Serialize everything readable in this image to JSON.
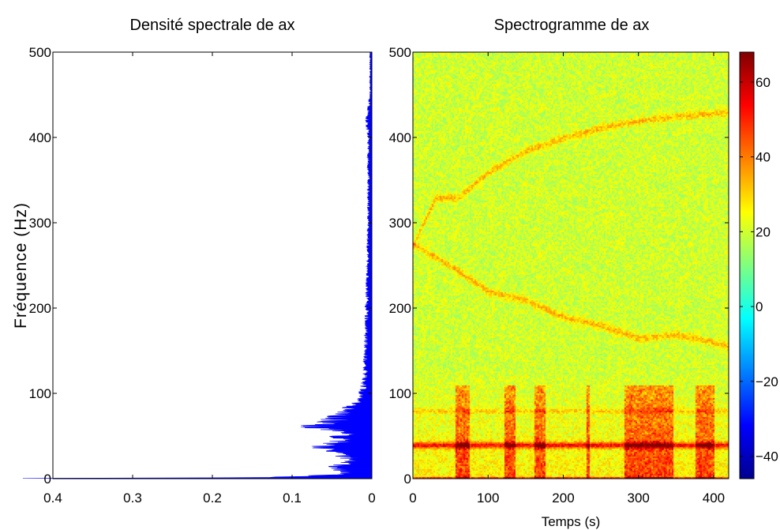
{
  "chart_data": [
    {
      "type": "area",
      "title": "Densité spectrale de ax",
      "ylabel": "Fréquence (Hz)",
      "xlabel": "",
      "xlim": [
        0.4,
        0
      ],
      "ylim": [
        0,
        500
      ],
      "xticks": [
        "0.4",
        "0.3",
        "0.2",
        "0.1",
        "0"
      ],
      "yticks": [
        "0",
        "100",
        "200",
        "300",
        "400",
        "500"
      ],
      "color": "#0000ff",
      "series": [
        {
          "y": [
            0,
            2,
            5,
            10,
            15,
            20,
            25,
            30,
            35,
            38,
            40,
            42,
            45,
            50,
            55,
            60,
            65,
            70,
            75,
            80,
            90,
            100,
            110,
            120,
            150,
            200,
            250,
            300,
            350,
            400,
            420,
            450,
            500
          ],
          "x": [
            0.39,
            0.1,
            0.03,
            0.035,
            0.04,
            0.025,
            0.03,
            0.04,
            0.045,
            0.07,
            0.04,
            0.05,
            0.03,
            0.04,
            0.03,
            0.065,
            0.06,
            0.045,
            0.035,
            0.03,
            0.016,
            0.012,
            0.01,
            0.008,
            0.007,
            0.006,
            0.005,
            0.004,
            0.004,
            0.004,
            0.006,
            0.002,
            0.002
          ]
        }
      ]
    },
    {
      "type": "heatmap",
      "title": "Spectrogramme de ax",
      "xlabel": "Temps (s)",
      "ylabel": "",
      "xlim": [
        0,
        420
      ],
      "ylim": [
        0,
        500
      ],
      "xticks": [
        "0",
        "100",
        "200",
        "300",
        "400"
      ],
      "yticks": [
        "0",
        "100",
        "200",
        "300",
        "400",
        "500"
      ],
      "colorbar": {
        "range": [
          -46,
          68
        ],
        "ticks": [
          "60",
          "40",
          "20",
          "0",
          "−20",
          "−40"
        ],
        "colormap": "jet"
      },
      "background_level_db": 20,
      "features": [
        {
          "name": "rising tone",
          "points": [
            [
              0,
              275
            ],
            [
              30,
              330
            ],
            [
              60,
              330
            ],
            [
              100,
              360
            ],
            [
              150,
              385
            ],
            [
              200,
              400
            ],
            [
              250,
              412
            ],
            [
              300,
              420
            ],
            [
              350,
              425
            ],
            [
              420,
              430
            ]
          ]
        },
        {
          "name": "falling tone",
          "points": [
            [
              0,
              275
            ],
            [
              50,
              250
            ],
            [
              100,
              220
            ],
            [
              150,
              210
            ],
            [
              200,
              190
            ],
            [
              250,
              180
            ],
            [
              300,
              165
            ],
            [
              350,
              170
            ],
            [
              400,
              160
            ],
            [
              420,
              155
            ]
          ]
        },
        {
          "name": "constant line",
          "points": [
            [
              0,
              40
            ],
            [
              420,
              40
            ]
          ]
        },
        {
          "name": "constant line",
          "points": [
            [
              0,
              80
            ],
            [
              420,
              80
            ]
          ]
        }
      ],
      "bursts": [
        [
          55,
          75
        ],
        [
          120,
          135
        ],
        [
          160,
          175
        ],
        [
          230,
          235
        ],
        [
          280,
          345
        ],
        [
          375,
          400
        ]
      ]
    }
  ]
}
